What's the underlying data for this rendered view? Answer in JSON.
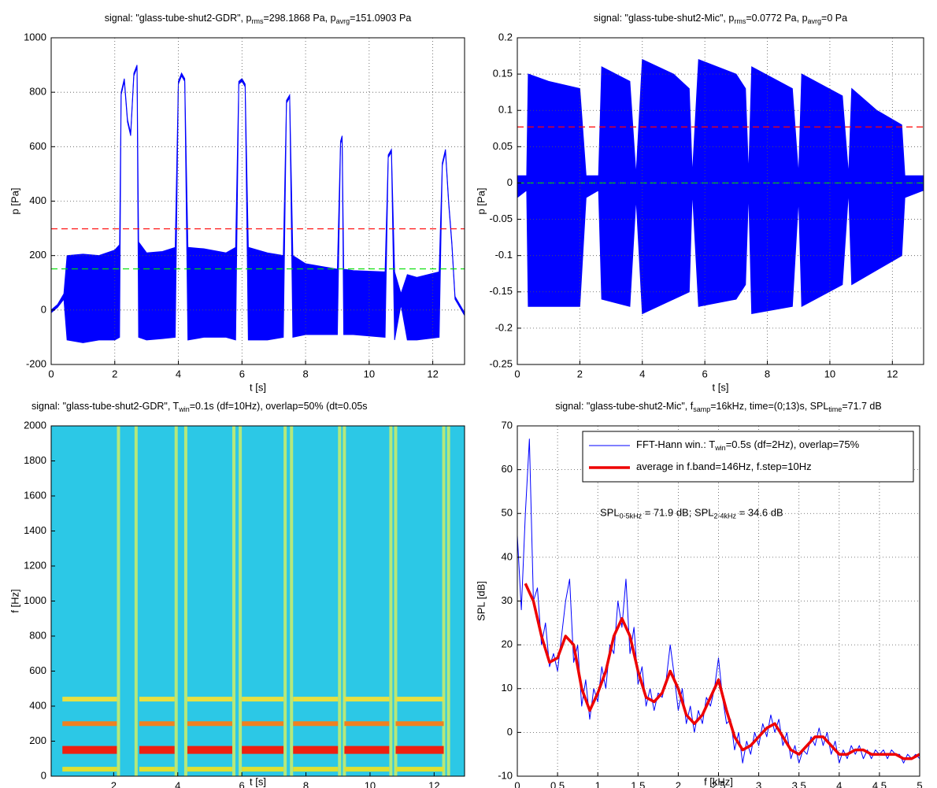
{
  "chart_data": [
    {
      "type": "envelope",
      "title": [
        "signal: \"glass-tube-shut2-GDR\",  p",
        {
          "sub": "rms"
        },
        "=298.1868 Pa,  p",
        {
          "sub": "avrg"
        },
        "=151.0903 Pa"
      ],
      "xlabel": "t [s]",
      "ylabel": "p [Pa]",
      "color": "#0000ff",
      "grid": true,
      "xlim": [
        0,
        13
      ],
      "xticks": [
        0,
        2,
        4,
        6,
        8,
        10,
        12
      ],
      "ylim": [
        -200,
        1000
      ],
      "yticks": [
        -200,
        0,
        200,
        400,
        600,
        800,
        1000
      ],
      "x": [
        0,
        0.2,
        0.4,
        0.5,
        1.0,
        1.5,
        2.0,
        2.15,
        2.2,
        2.3,
        2.4,
        2.5,
        2.6,
        2.7,
        2.75,
        3.0,
        3.5,
        3.9,
        4.0,
        4.1,
        4.2,
        4.3,
        4.8,
        5.5,
        5.8,
        5.9,
        6.0,
        6.1,
        6.2,
        6.8,
        7.3,
        7.4,
        7.5,
        7.6,
        8.0,
        8.5,
        9.0,
        9.1,
        9.15,
        9.2,
        9.5,
        10.5,
        10.6,
        10.7,
        10.8,
        11.0,
        11.2,
        11.5,
        12.2,
        12.3,
        12.4,
        12.5,
        12.6,
        12.7,
        13.0
      ],
      "upper": [
        0,
        20,
        60,
        200,
        205,
        200,
        220,
        240,
        800,
        850,
        700,
        650,
        870,
        900,
        250,
        210,
        215,
        230,
        840,
        870,
        850,
        230,
        225,
        210,
        230,
        840,
        850,
        830,
        230,
        210,
        200,
        770,
        790,
        200,
        170,
        160,
        150,
        620,
        640,
        150,
        145,
        140,
        570,
        590,
        140,
        60,
        130,
        120,
        140,
        540,
        590,
        400,
        250,
        50,
        -10
      ],
      "lower": [
        -10,
        10,
        40,
        -110,
        -120,
        -110,
        -110,
        -100,
        790,
        840,
        690,
        640,
        860,
        890,
        -100,
        -110,
        -105,
        -100,
        830,
        860,
        840,
        -110,
        -100,
        -100,
        -110,
        830,
        840,
        820,
        -110,
        -110,
        -100,
        760,
        780,
        -100,
        -90,
        -90,
        -90,
        610,
        630,
        -90,
        -90,
        -100,
        560,
        580,
        -110,
        20,
        -110,
        -110,
        -100,
        530,
        580,
        390,
        240,
        40,
        -20
      ],
      "hlines": [
        {
          "value": 298.1868,
          "color": "#ff0000"
        },
        {
          "value": 151.0903,
          "color": "#00dd00"
        }
      ]
    },
    {
      "type": "envelope",
      "title": [
        "signal: \"glass-tube-shut2-Mic\",  p",
        {
          "sub": "rms"
        },
        "=0.0772 Pa,  p",
        {
          "sub": "avrg"
        },
        "=0 Pa"
      ],
      "xlabel": "t [s]",
      "ylabel": "p [Pa]",
      "color": "#0000ff",
      "grid": true,
      "xlim": [
        0,
        13
      ],
      "xticks": [
        0,
        2,
        4,
        6,
        8,
        10,
        12
      ],
      "ylim": [
        -0.25,
        0.2
      ],
      "yticks": [
        -0.25,
        -0.2,
        -0.15,
        -0.1,
        -0.05,
        0,
        0.05,
        0.1,
        0.15,
        0.2
      ],
      "x": [
        0,
        0.3,
        0.35,
        1.0,
        2.0,
        2.2,
        2.6,
        2.7,
        3.6,
        3.8,
        4.0,
        5.0,
        5.5,
        5.6,
        5.8,
        7.0,
        7.3,
        7.4,
        7.5,
        8.8,
        9.0,
        9.1,
        10.4,
        10.6,
        10.7,
        11.5,
        12.3,
        12.4,
        13
      ],
      "upper": [
        0.01,
        0.01,
        0.15,
        0.14,
        0.13,
        0.01,
        0.01,
        0.16,
        0.14,
        0.01,
        0.17,
        0.15,
        0.13,
        0.01,
        0.17,
        0.15,
        0.13,
        0.01,
        0.16,
        0.13,
        0.01,
        0.15,
        0.12,
        0.01,
        0.13,
        0.1,
        0.08,
        0.01,
        0.01
      ],
      "lower": [
        -0.02,
        -0.01,
        -0.17,
        -0.17,
        -0.17,
        -0.02,
        -0.01,
        -0.16,
        -0.17,
        -0.02,
        -0.18,
        -0.16,
        -0.15,
        -0.01,
        -0.17,
        -0.16,
        -0.14,
        -0.01,
        -0.18,
        -0.17,
        -0.02,
        -0.17,
        -0.14,
        -0.01,
        -0.14,
        -0.12,
        -0.1,
        -0.02,
        -0.01
      ],
      "hlines": [
        {
          "value": 0.0772,
          "color": "#ff0000"
        },
        {
          "value": 0,
          "color": "#00dd00"
        }
      ]
    },
    {
      "type": "spectrogram",
      "title": [
        "signal: \"glass-tube-shut2-GDR\",  T",
        {
          "sub": "win"
        },
        "=0.1s (df=10Hz), overlap=50% (dt=0.05s"
      ],
      "xlabel": "t [s]",
      "ylabel": "f [Hz]",
      "grid": false,
      "background": "#2cc8e6",
      "xlim": [
        0.05,
        12.95
      ],
      "xticks": [
        2,
        4,
        6,
        8,
        10,
        12
      ],
      "ylim": [
        0,
        2000
      ],
      "yticks": [
        0,
        200,
        400,
        600,
        800,
        1000,
        1200,
        1400,
        1600,
        1800,
        2000
      ],
      "segments": [
        [
          0.4,
          2.1
        ],
        [
          2.8,
          3.9
        ],
        [
          4.3,
          5.7
        ],
        [
          6.0,
          7.3
        ],
        [
          7.6,
          9.0
        ],
        [
          9.2,
          10.6
        ],
        [
          10.8,
          12.3
        ]
      ],
      "bands": [
        {
          "freq": 40,
          "color": "#e0e030"
        },
        {
          "freq": 150,
          "color": "#ee2010"
        },
        {
          "freq": 300,
          "color": "#f08020"
        },
        {
          "freq": 440,
          "color": "#e8e040"
        }
      ],
      "onsets": [
        2.15,
        2.7,
        3.95,
        4.25,
        5.75,
        5.95,
        7.35,
        7.55,
        9.05,
        9.2,
        10.65,
        10.8,
        12.3,
        12.45
      ],
      "onset_color": "#d8f060"
    },
    {
      "type": "line",
      "title": [
        "signal: \"glass-tube-shut2-Mic\",  f",
        {
          "sub": "samp"
        },
        "=16kHz,  time=(0;13)s,  SPL",
        {
          "sub": "time"
        },
        "=71.7 dB"
      ],
      "xlabel": "f [kHz]",
      "ylabel": "SPL [dB]",
      "grid": true,
      "legend": "upper right",
      "xlim": [
        0,
        5
      ],
      "xticks": [
        0,
        0.5,
        1,
        1.5,
        2,
        2.5,
        3,
        3.5,
        4,
        4.5,
        5
      ],
      "ylim": [
        -10,
        70
      ],
      "yticks": [
        -10,
        0,
        10,
        20,
        30,
        40,
        50,
        60,
        70
      ],
      "annotation": [
        "SPL",
        {
          "sub": "0-5kHz"
        },
        " = 71.9 dB;    SPL",
        {
          "sub": "2-4kHz"
        },
        " = 34.6 dB"
      ],
      "series": [
        {
          "name": [
            "FFT-Hann win.: T",
            {
              "sub": "win"
            },
            "=0.5s (df=2Hz), overlap=75%"
          ],
          "color": "#0000ff",
          "width": 1,
          "x": [
            0,
            0.05,
            0.1,
            0.15,
            0.2,
            0.25,
            0.3,
            0.35,
            0.4,
            0.45,
            0.5,
            0.55,
            0.6,
            0.65,
            0.7,
            0.75,
            0.8,
            0.85,
            0.9,
            0.95,
            1.0,
            1.05,
            1.1,
            1.15,
            1.2,
            1.25,
            1.3,
            1.35,
            1.4,
            1.45,
            1.5,
            1.55,
            1.6,
            1.65,
            1.7,
            1.75,
            1.8,
            1.85,
            1.9,
            1.95,
            2.0,
            2.05,
            2.1,
            2.15,
            2.2,
            2.25,
            2.3,
            2.35,
            2.4,
            2.45,
            2.5,
            2.55,
            2.6,
            2.65,
            2.7,
            2.75,
            2.8,
            2.85,
            2.9,
            2.95,
            3.0,
            3.05,
            3.1,
            3.15,
            3.2,
            3.25,
            3.3,
            3.35,
            3.4,
            3.45,
            3.5,
            3.55,
            3.6,
            3.65,
            3.7,
            3.75,
            3.8,
            3.85,
            3.9,
            3.95,
            4.0,
            4.05,
            4.1,
            4.15,
            4.2,
            4.25,
            4.3,
            4.35,
            4.4,
            4.45,
            4.5,
            4.55,
            4.6,
            4.65,
            4.7,
            4.75,
            4.8,
            4.85,
            4.9,
            4.95,
            5.0
          ],
          "values": [
            45,
            28,
            50,
            67,
            30,
            33,
            20,
            25,
            15,
            18,
            14,
            22,
            30,
            35,
            16,
            20,
            6,
            12,
            3,
            10,
            7,
            15,
            10,
            20,
            18,
            30,
            24,
            35,
            18,
            24,
            11,
            15,
            6,
            10,
            5,
            9,
            8,
            12,
            20,
            13,
            5,
            10,
            2,
            6,
            0,
            5,
            2,
            8,
            6,
            10,
            17,
            8,
            2,
            3,
            -4,
            0,
            -7,
            -2,
            -5,
            0,
            -3,
            2,
            -1,
            4,
            0,
            3,
            -3,
            0,
            -6,
            -3,
            -7,
            -4,
            -5,
            -1,
            -3,
            1,
            -3,
            0,
            -5,
            -2,
            -7,
            -4,
            -6,
            -3,
            -5,
            -3,
            -6,
            -4,
            -6,
            -4,
            -5,
            -4,
            -6,
            -4,
            -5,
            -5,
            -7,
            -5,
            -6,
            -5,
            -6
          ]
        },
        {
          "name": [
            "average in f.band=146Hz, f.step=10Hz"
          ],
          "color": "#ee0000",
          "width": 3.5,
          "x": [
            0.1,
            0.2,
            0.3,
            0.4,
            0.5,
            0.6,
            0.7,
            0.8,
            0.9,
            1.0,
            1.1,
            1.2,
            1.3,
            1.4,
            1.5,
            1.6,
            1.7,
            1.8,
            1.9,
            2.0,
            2.1,
            2.2,
            2.3,
            2.4,
            2.5,
            2.6,
            2.7,
            2.8,
            2.9,
            3.0,
            3.1,
            3.2,
            3.3,
            3.4,
            3.5,
            3.6,
            3.7,
            3.8,
            3.9,
            4.0,
            4.1,
            4.2,
            4.3,
            4.4,
            4.5,
            4.6,
            4.7,
            4.8,
            4.9,
            5.0
          ],
          "values": [
            34,
            30,
            22,
            16,
            17,
            22,
            20,
            10,
            5,
            9,
            14,
            22,
            26,
            22,
            14,
            8,
            7,
            9,
            14,
            10,
            4,
            2,
            4,
            8,
            12,
            5,
            -1,
            -4,
            -3,
            -1,
            1,
            2,
            -1,
            -4,
            -5,
            -3,
            -1,
            -1,
            -3,
            -5,
            -5,
            -4,
            -4,
            -5,
            -5,
            -5,
            -5,
            -6,
            -6,
            -5
          ]
        }
      ]
    }
  ]
}
